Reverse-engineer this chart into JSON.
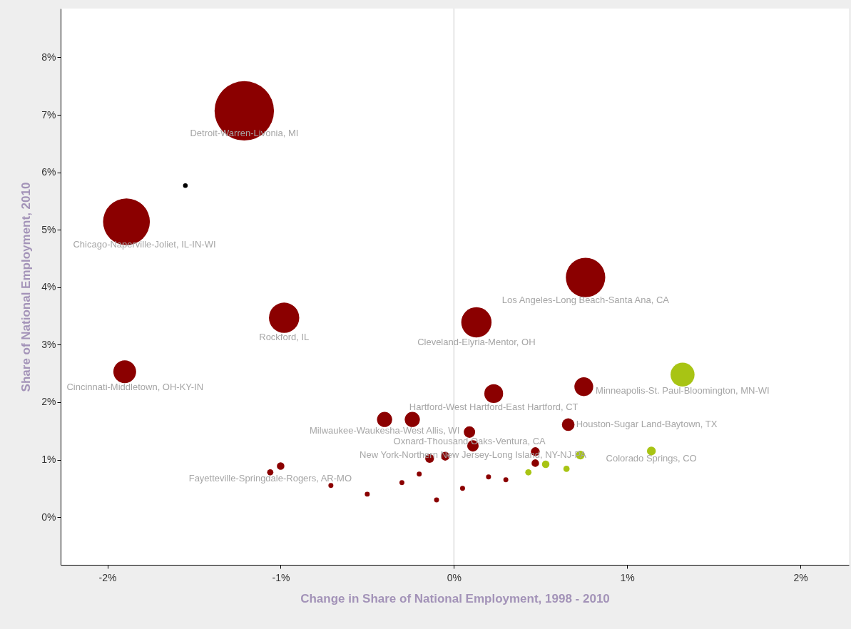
{
  "chart_data": {
    "type": "bubble",
    "xlabel": "Change in Share of National Employment, 1998 - 2010",
    "ylabel": "Share of National Employment, 2010",
    "xlim": [
      -2.27,
      2.28
    ],
    "ylim": [
      -0.83,
      8.85
    ],
    "xticks": [
      {
        "value": -2,
        "label": "-2%"
      },
      {
        "value": -1,
        "label": "-1%"
      },
      {
        "value": 0,
        "label": "0%"
      },
      {
        "value": 1,
        "label": "1%"
      },
      {
        "value": 2,
        "label": "2%"
      }
    ],
    "yticks": [
      {
        "value": 0,
        "label": "0%"
      },
      {
        "value": 1,
        "label": "1%"
      },
      {
        "value": 2,
        "label": "2%"
      },
      {
        "value": 3,
        "label": "3%"
      },
      {
        "value": 4,
        "label": "4%"
      },
      {
        "value": 5,
        "label": "5%"
      },
      {
        "value": 6,
        "label": "6%"
      },
      {
        "value": 7,
        "label": "7%"
      },
      {
        "value": 8,
        "label": "8%"
      }
    ],
    "ref_lines": [
      {
        "axis": "x",
        "value": 0,
        "color": "#cccccc"
      }
    ],
    "series": [
      {
        "color": "#8b0000",
        "x": [
          -1.21,
          -1.89,
          0.76,
          0.13,
          -0.98,
          -1.9,
          0.75,
          0.23,
          -0.4,
          -0.24,
          0.09,
          0.66,
          0.11,
          0.47,
          0.47,
          -0.14,
          -0.05,
          -1.0,
          -1.06,
          -0.71,
          -0.3,
          -0.2,
          0.2,
          0.3,
          0.05,
          -0.5,
          -0.1
        ],
        "values": [
          7.07,
          5.14,
          4.17,
          3.39,
          3.47,
          2.53,
          2.27,
          2.15,
          1.7,
          1.7,
          1.48,
          1.61,
          1.24,
          1.14,
          0.94,
          1.02,
          1.06,
          0.89,
          0.78,
          0.55,
          0.6,
          0.75,
          0.7,
          0.65,
          0.5,
          0.4,
          0.3
        ],
        "sizes": [
          1,
          0.62,
          0.44,
          0.26,
          0.26,
          0.147,
          0.1,
          0.1,
          0.065,
          0.065,
          0.037,
          0.045,
          0.037,
          0.022,
          0.016,
          0.022,
          0.022,
          0.016,
          0.011,
          0.007,
          0.007,
          0.007,
          0.007,
          0.007,
          0.007,
          0.007,
          0.007
        ]
      },
      {
        "color": "#a8c414",
        "x": [
          1.32,
          1.14,
          0.73,
          0.53,
          0.65,
          0.43
        ],
        "values": [
          2.48,
          1.15,
          1.08,
          0.92,
          0.84,
          0.78
        ],
        "sizes": [
          0.163,
          0.022,
          0.022,
          0.016,
          0.011,
          0.011
        ]
      },
      {
        "color": "#000000",
        "x": [
          -1.55
        ],
        "values": [
          5.77
        ],
        "sizes": [
          0.006
        ]
      }
    ],
    "annotations": [
      {
        "text": "Detroit-Warren-Livonia, MI",
        "x": -1.21,
        "y": 7.07
      },
      {
        "text": "Chicago-Naperville-Joliet, IL-IN-WI",
        "x": -1.89,
        "y": 5.14
      },
      {
        "text": "Los Angeles-Long Beach-Santa Ana, CA",
        "x": 0.76,
        "y": 4.17
      },
      {
        "text": "Rockford, IL",
        "x": -0.98,
        "y": 3.47
      },
      {
        "text": "Cleveland-Elyria-Mentor, OH",
        "x": 0.13,
        "y": 3.39
      },
      {
        "text": "Cincinnati-Middletown, OH-KY-IN",
        "x": -1.9,
        "y": 2.53
      },
      {
        "text": "Minneapolis-St. Paul-Bloomington, MN-WI",
        "x": 1.32,
        "y": 2.48
      },
      {
        "text": "Hartford-West Hartford-East Hartford, CT",
        "x": 0.23,
        "y": 2.15
      },
      {
        "text": "Milwaukee-Waukesha-West Allis, WI",
        "x": -0.4,
        "y": 1.7
      },
      {
        "text": "Oxnard-Thousand Oaks-Ventura, CA",
        "x": 0.09,
        "y": 1.48
      },
      {
        "text": "Houston-Sugar Land-Baytown, TX",
        "x": 0.66,
        "y": 1.61
      },
      {
        "text": "New York-Northern New Jersey-Long Island, NY-NJ-PA",
        "x": 0.11,
        "y": 1.24
      },
      {
        "text": "Colorado Springs, CO",
        "x": 1.14,
        "y": 1.15
      },
      {
        "text": "Fayetteville-Springdale-Rogers, AR-MO",
        "x": -1.06,
        "y": 0.78
      }
    ]
  }
}
